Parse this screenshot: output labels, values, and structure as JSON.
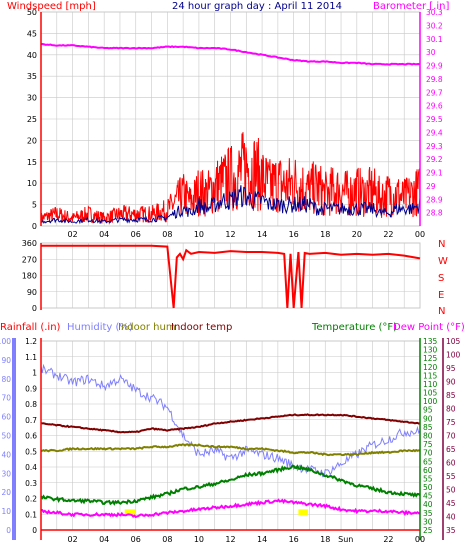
{
  "colors": {
    "wind": "#ff0000",
    "gust": "#ff0000",
    "avgwind": "#00008b",
    "baro": "#ff00ff",
    "dir": "#ff0000",
    "rain": "#ff0000",
    "humidity": "#8080ff",
    "indoorhum": "#808000",
    "indoortemp": "#800000",
    "temp": "#008000",
    "dew": "#ff00ff",
    "tempAxis": "#800040",
    "grid": "#c8c8c8",
    "axis": "#000080",
    "sun": "#ffff00"
  },
  "chart_data": [
    {
      "type": "line",
      "title": "24 hour graph day : April 11 2014",
      "ylabel": "Windspeed [mph]",
      "y2label": "Barometer [.in]",
      "x_ticks": [
        "02",
        "04",
        "06",
        "08",
        "10",
        "12",
        "14",
        "16",
        "18",
        "20",
        "22",
        "00"
      ],
      "x_range": [
        0,
        24
      ],
      "ylim": [
        0,
        50
      ],
      "y_ticks": [
        "50",
        "45",
        "40",
        "35",
        "30",
        "25",
        "20",
        "15",
        "10",
        "5",
        "0"
      ],
      "y2lim": [
        28.7,
        30.3
      ],
      "y2_ticks": [
        "30.3",
        "30.2",
        "30.1",
        "30",
        "29.9",
        "29.8",
        "29.7",
        "29.6",
        "29.5",
        "29.4",
        "29.3",
        "29.2",
        "29.1",
        "29",
        "28.9",
        "28.8"
      ],
      "series": [
        {
          "name": "Windspeed",
          "x": [
            0,
            1,
            2,
            3,
            4,
            5,
            6,
            7,
            8,
            8.5,
            9,
            9.5,
            10,
            10.5,
            11,
            11.5,
            12,
            12.5,
            13,
            13.5,
            14,
            14.5,
            15,
            15.5,
            16,
            16.5,
            17,
            17.5,
            18,
            18.5,
            19,
            19.5,
            20,
            20.5,
            21,
            21.5,
            22,
            22.5,
            23,
            23.5,
            24
          ],
          "values": [
            2,
            3,
            2,
            3,
            2,
            3,
            3,
            3,
            4,
            6,
            8,
            6,
            9,
            8,
            10,
            11,
            12,
            13,
            15,
            14,
            12,
            10,
            11,
            10,
            11,
            10,
            9,
            10,
            8,
            9,
            9,
            8,
            9,
            8,
            9,
            7,
            8,
            8,
            7,
            8,
            9
          ]
        },
        {
          "name": "Average",
          "x": [
            0,
            1,
            2,
            3,
            4,
            5,
            6,
            7,
            8,
            8.5,
            9,
            9.5,
            10,
            10.5,
            11,
            11.5,
            12,
            12.5,
            13,
            13.5,
            14,
            14.5,
            15,
            15.5,
            16,
            16.5,
            17,
            17.5,
            18,
            18.5,
            19,
            19.5,
            20,
            20.5,
            21,
            21.5,
            22,
            22.5,
            23,
            23.5,
            24
          ],
          "values": [
            1,
            1.5,
            1,
            1.5,
            1,
            1.5,
            1.5,
            1.5,
            2,
            3,
            4,
            3,
            5,
            4,
            5,
            6,
            6,
            7,
            7,
            6,
            6,
            5,
            5,
            5,
            5,
            5,
            5,
            4,
            4,
            4,
            4,
            4,
            4,
            4,
            4,
            3,
            3,
            4,
            4,
            4,
            5
          ]
        },
        {
          "name": "Barometer",
          "x": [
            0,
            1,
            2,
            3,
            4,
            5,
            6,
            7,
            8,
            9,
            10,
            11,
            12,
            13,
            14,
            15,
            16,
            17,
            18,
            19,
            20,
            21,
            22,
            23,
            24
          ],
          "values": [
            30.06,
            30.05,
            30.05,
            30.04,
            30.03,
            30.03,
            30.03,
            30.03,
            30.04,
            30.04,
            30.03,
            30.03,
            30.02,
            30.0,
            29.98,
            29.96,
            29.94,
            29.93,
            29.93,
            29.92,
            29.92,
            29.91,
            29.91,
            29.91,
            29.91
          ]
        }
      ]
    },
    {
      "type": "line",
      "ylabel_letters": [
        "N",
        "W",
        "S",
        "E",
        "N"
      ],
      "x_range": [
        0,
        24
      ],
      "ylim": [
        0,
        360
      ],
      "y_ticks": [
        "360",
        "270",
        "180",
        "90",
        "0"
      ],
      "series": [
        {
          "name": "Wind direction",
          "x": [
            0,
            1,
            2,
            3,
            4,
            5,
            6,
            7,
            8,
            8.4,
            8.6,
            8.8,
            9,
            9.2,
            9.5,
            10,
            11,
            12,
            13,
            14,
            15,
            15.4,
            15.6,
            15.8,
            16,
            16.3,
            16.5,
            16.7,
            17,
            18,
            19,
            20,
            21,
            22,
            23,
            24
          ],
          "values": [
            345,
            345,
            345,
            345,
            345,
            345,
            345,
            345,
            340,
            0,
            280,
            300,
            270,
            320,
            300,
            310,
            305,
            315,
            310,
            310,
            305,
            300,
            0,
            300,
            0,
            310,
            0,
            305,
            300,
            305,
            295,
            300,
            295,
            300,
            290,
            275
          ]
        }
      ]
    },
    {
      "type": "line",
      "legend": [
        "Rainfall (.in)",
        "Humidity (%)",
        "Indoor hum",
        "Indoor temp",
        "Temperature (°F)",
        "Dew Point (°F)"
      ],
      "x_ticks": [
        "02",
        "04",
        "06",
        "08",
        "10",
        "12",
        "14",
        "16",
        "18",
        "Sun",
        "22",
        "00"
      ],
      "x_tick_extra": "Sun",
      "x_range": [
        0,
        24
      ],
      "rain_ylim": [
        0,
        1.2
      ],
      "rain_ticks": [
        "1.2",
        "1.1",
        "1",
        "0.9",
        "0.8",
        "0.7",
        "0.6",
        "0.5",
        "0.4",
        "0.3",
        "0.2",
        "0.1",
        "0"
      ],
      "hum_ylim": [
        0,
        100
      ],
      "hum_ticks": [
        "100",
        "90",
        "80",
        "70",
        "60",
        "50",
        "40",
        "30",
        "20",
        "10",
        "0"
      ],
      "temp_ylim": [
        25,
        135
      ],
      "temp_ticks": [
        "135",
        "130",
        "125",
        "120",
        "115",
        "110",
        "105",
        "100",
        "95",
        "90",
        "85",
        "80",
        "75",
        "70",
        "65",
        "60",
        "55",
        "50",
        "45",
        "40",
        "35",
        "30",
        "25"
      ],
      "dew_ylim": [
        35,
        105
      ],
      "dew_ticks": [
        "105",
        "100",
        "95",
        "90",
        "85",
        "80",
        "75",
        "70",
        "65",
        "60",
        "55",
        "50",
        "45",
        "40",
        "35"
      ],
      "series": [
        {
          "name": "Rainfall",
          "axis": "rain",
          "x": [
            0,
            24
          ],
          "values": [
            0,
            0
          ]
        },
        {
          "name": "Humidity",
          "axis": "hum",
          "x": [
            0,
            1,
            2,
            3,
            4,
            5,
            6,
            7,
            8,
            9,
            10,
            11,
            12,
            13,
            14,
            15,
            16,
            17,
            18,
            19,
            20,
            21,
            22,
            23,
            24
          ],
          "values": [
            85,
            82,
            78,
            80,
            76,
            80,
            74,
            70,
            65,
            50,
            40,
            42,
            38,
            42,
            40,
            38,
            34,
            32,
            30,
            35,
            40,
            45,
            48,
            52,
            52
          ]
        },
        {
          "name": "Indoor hum",
          "axis": "hum",
          "x": [
            0,
            1,
            2,
            3,
            4,
            5,
            6,
            7,
            8,
            9,
            10,
            11,
            12,
            13,
            14,
            15,
            16,
            17,
            18,
            19,
            20,
            21,
            22,
            23,
            24
          ],
          "values": [
            42,
            42,
            43,
            43,
            43,
            43,
            43,
            44,
            44,
            45,
            45,
            44,
            44,
            43,
            43,
            42,
            41,
            41,
            40,
            40,
            40,
            41,
            41,
            42,
            42
          ]
        },
        {
          "name": "Indoor temp",
          "axis": "temp",
          "x": [
            0,
            1,
            2,
            3,
            4,
            5,
            6,
            7,
            8,
            9,
            10,
            11,
            12,
            13,
            14,
            15,
            16,
            17,
            18,
            19,
            20,
            21,
            22,
            23,
            24
          ],
          "values": [
            87,
            86,
            85,
            84,
            83,
            82,
            82,
            84,
            83,
            84,
            85,
            87,
            88,
            89,
            90,
            91,
            92,
            92,
            92,
            92,
            91,
            90,
            89,
            88,
            87
          ]
        },
        {
          "name": "Temperature",
          "axis": "temp",
          "x": [
            0,
            1,
            2,
            3,
            4,
            5,
            6,
            7,
            8,
            9,
            10,
            11,
            12,
            13,
            14,
            15,
            16,
            17,
            18,
            19,
            20,
            21,
            22,
            23,
            24
          ],
          "values": [
            44,
            43,
            42,
            42,
            41,
            41,
            42,
            44,
            46,
            49,
            50,
            52,
            54,
            57,
            58,
            60,
            62,
            60,
            57,
            54,
            51,
            49,
            47,
            46,
            45
          ]
        },
        {
          "name": "Dew Point",
          "axis": "temp",
          "x": [
            0,
            1,
            2,
            3,
            4,
            5,
            6,
            7,
            8,
            9,
            10,
            11,
            12,
            13,
            14,
            15,
            16,
            17,
            18,
            19,
            20,
            21,
            22,
            23,
            24
          ],
          "values": [
            36,
            35,
            34,
            34,
            34,
            34,
            33,
            34,
            35,
            36,
            37,
            38,
            39,
            40,
            41,
            42,
            41,
            40,
            39,
            37,
            36,
            36,
            36,
            35,
            35
          ]
        }
      ]
    }
  ]
}
